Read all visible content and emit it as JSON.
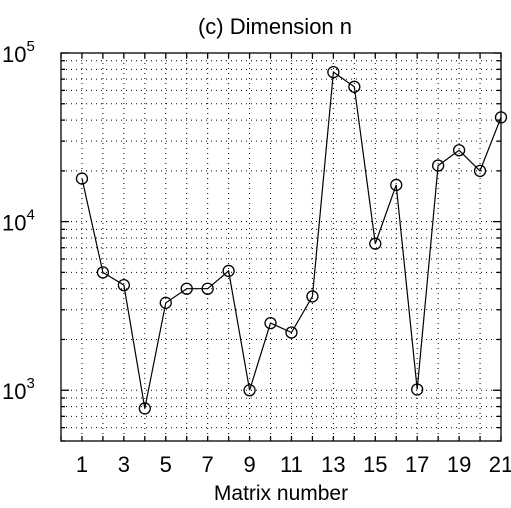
{
  "chart_data": {
    "type": "line",
    "title": "(c) Dimension n",
    "xlabel": "Matrix number",
    "ylabel": "",
    "yscale": "log",
    "ylim": [
      500,
      100000
    ],
    "xlim": [
      0,
      21
    ],
    "grid": true,
    "x": [
      1,
      2,
      3,
      4,
      5,
      6,
      7,
      8,
      9,
      10,
      11,
      12,
      13,
      14,
      15,
      16,
      17,
      18,
      19,
      20,
      21
    ],
    "x_ticks": [
      1,
      3,
      5,
      7,
      9,
      11,
      13,
      15,
      17,
      19,
      21
    ],
    "y_ticks": [
      {
        "value": 1000,
        "base": "10",
        "exp": "3"
      },
      {
        "value": 10000,
        "base": "10",
        "exp": "4"
      },
      {
        "value": 100000,
        "base": "10",
        "exp": "5"
      }
    ],
    "series": [
      {
        "marker": "open-circle",
        "color": "#000000",
        "values": [
          18000,
          5000,
          4200,
          780,
          3300,
          4000,
          4000,
          5100,
          1000,
          2500,
          2200,
          3600,
          77000,
          63000,
          7400,
          16500,
          1010,
          21500,
          26500,
          20000,
          41500
        ]
      }
    ]
  }
}
